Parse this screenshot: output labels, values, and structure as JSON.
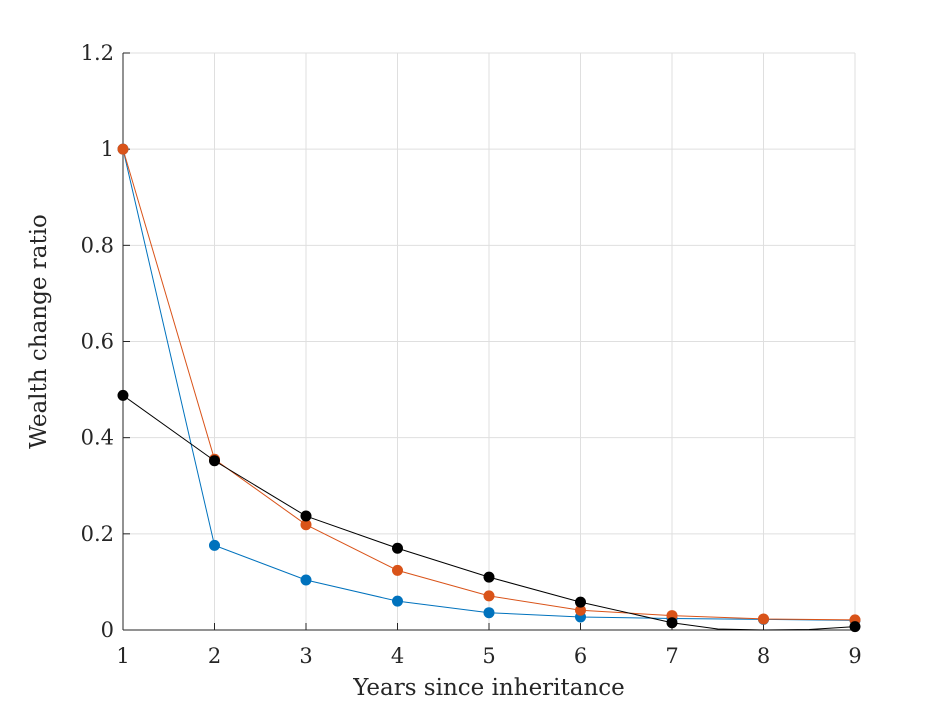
{
  "chart_data": {
    "type": "line",
    "xlabel": "Years since inheritance",
    "ylabel": "Wealth change ratio",
    "xlim": [
      1,
      9
    ],
    "ylim": [
      0,
      1.2
    ],
    "xticks": [
      "1",
      "2",
      "3",
      "4",
      "5",
      "6",
      "7",
      "8",
      "9"
    ],
    "yticks": [
      "0",
      "0.2",
      "0.4",
      "0.6",
      "0.8",
      "1",
      "1.2"
    ],
    "grid": true,
    "x": [
      1,
      2,
      3,
      4,
      5,
      6,
      7,
      8,
      9
    ],
    "series": [
      {
        "color": "#0072BD",
        "values": [
          1.0,
          0.176,
          0.104,
          0.06,
          0.036,
          0.027,
          0.024,
          0.022,
          0.02
        ],
        "x": [
          1,
          2,
          3,
          4,
          5,
          6,
          7,
          8,
          9
        ]
      },
      {
        "color": "#D95319",
        "values": [
          1.0,
          0.355,
          0.219,
          0.124,
          0.071,
          0.041,
          0.03,
          0.023,
          0.021
        ],
        "x": [
          1,
          2,
          3,
          4,
          5,
          6,
          7,
          8,
          9
        ]
      },
      {
        "color": "#000000",
        "values": [
          0.488,
          0.352,
          0.237,
          0.17,
          0.11,
          0.058,
          0.015,
          0.007
        ],
        "x": [
          1,
          2,
          3,
          4,
          5,
          6,
          7,
          9
        ],
        "curve_dip": {
          "x": [
            7,
            7.5,
            8,
            8.5,
            9
          ],
          "values": [
            0.015,
            0.002,
            0.0,
            0.001,
            0.007
          ]
        }
      }
    ]
  }
}
